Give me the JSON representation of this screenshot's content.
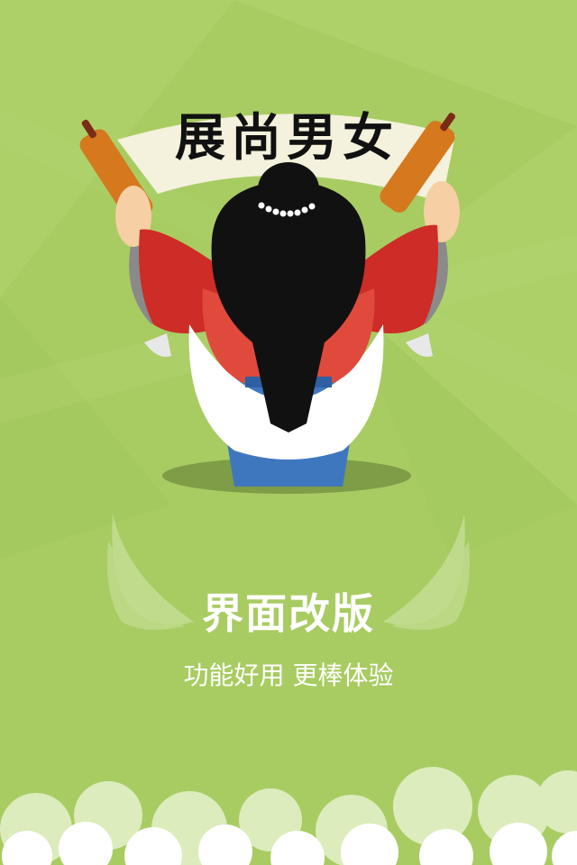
{
  "banner": {
    "scroll_text": "展尚男女"
  },
  "headline": "界面改版",
  "tagline": "功能好用 更棒体验",
  "colors": {
    "background": "#a8cc62",
    "text": "#ffffff",
    "robe_red": "#d0342c",
    "robe_blue": "#3f77bf",
    "scroll_paper": "#f4f1dc",
    "scroll_rod": "#d5781e",
    "hair": "#111111",
    "cloud": "#ffffff"
  },
  "icons": {
    "character": "scholar-holding-scroll-illustration",
    "wings": "angel-wings-icon",
    "clouds": "cloud-border-decoration"
  }
}
